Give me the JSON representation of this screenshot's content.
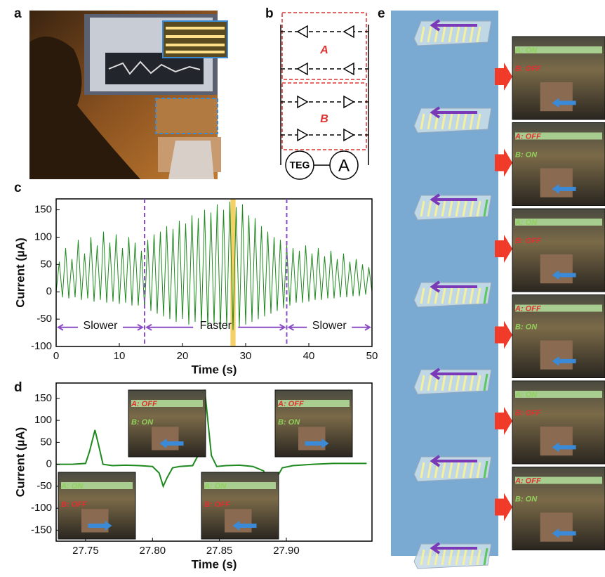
{
  "panel_labels": [
    "a",
    "b",
    "c",
    "d",
    "e"
  ],
  "circuit": {
    "group_labels": [
      "A",
      "B"
    ],
    "source": "TEG",
    "meter": "A"
  },
  "chart_data": [
    {
      "type": "line",
      "xlabel": "Time (s)",
      "ylabel": "Current (µA)",
      "color": "#1f8a1f",
      "xlim": [
        0,
        50
      ],
      "xticks": [
        0,
        10,
        20,
        30,
        40,
        50
      ],
      "ylim": [
        -100,
        170
      ],
      "yticks": [
        -100,
        -50,
        0,
        50,
        100,
        150
      ],
      "vlines": [
        14,
        36.5
      ],
      "highlight": [
        27.6,
        28.4
      ],
      "region_labels": [
        "Slower",
        "Faster",
        "Slower"
      ],
      "x": [
        0,
        0.5,
        1,
        1.5,
        2,
        2.5,
        3,
        3.5,
        4,
        4.5,
        5,
        5.5,
        6,
        6.5,
        7,
        7.5,
        8,
        8.5,
        9,
        9.5,
        10,
        10.5,
        11,
        11.5,
        12,
        12.5,
        13,
        13.5,
        14,
        14.5,
        15,
        15.5,
        16,
        16.5,
        17,
        17.5,
        18,
        18.5,
        19,
        19.5,
        20,
        20.5,
        21,
        21.5,
        22,
        22.5,
        23,
        23.5,
        24,
        24.5,
        25,
        25.5,
        26,
        26.5,
        27,
        27.5,
        28,
        28.5,
        29,
        29.5,
        30,
        30.5,
        31,
        31.5,
        32,
        32.5,
        33,
        33.5,
        34,
        34.5,
        35,
        35.5,
        36,
        36.5,
        37,
        37.5,
        38,
        38.5,
        39,
        39.5,
        40,
        40.5,
        41,
        41.5,
        42,
        42.5,
        43,
        43.5,
        44,
        44.5,
        45,
        45.5,
        46,
        46.5,
        47,
        47.5,
        48,
        48.5,
        49,
        49.5,
        50
      ],
      "values": [
        0,
        55,
        -10,
        80,
        -12,
        60,
        -10,
        95,
        -15,
        70,
        -12,
        100,
        -18,
        85,
        -15,
        110,
        -20,
        90,
        -18,
        105,
        -22,
        80,
        -20,
        100,
        -25,
        90,
        -25,
        75,
        -30,
        95,
        -35,
        105,
        -40,
        110,
        -45,
        120,
        -50,
        115,
        -55,
        130,
        -50,
        125,
        -60,
        140,
        -55,
        135,
        -60,
        150,
        -65,
        145,
        -60,
        160,
        -70,
        150,
        -65,
        165,
        -70,
        155,
        -65,
        160,
        -60,
        140,
        -55,
        135,
        -50,
        120,
        -45,
        110,
        -40,
        100,
        -35,
        95,
        -30,
        85,
        -25,
        80,
        -20,
        75,
        -20,
        85,
        -18,
        70,
        -15,
        80,
        -15,
        65,
        -12,
        75,
        -12,
        60,
        -10,
        70,
        -10,
        55,
        -8,
        60,
        -8,
        50,
        -5,
        45,
        0
      ]
    },
    {
      "type": "line",
      "xlabel": "Time (s)",
      "ylabel": "Current (µA)",
      "color": "#1f8a1f",
      "xlim": [
        27.728,
        27.964
      ],
      "xticks": [
        27.75,
        {
          "value": 27.8,
          "label": "27.80"
        },
        27.85,
        {
          "value": 27.9,
          "label": "27.90"
        }
      ],
      "ylim": [
        -175,
        185
      ],
      "yticks": [
        -150,
        -100,
        -50,
        0,
        50,
        100,
        150
      ],
      "x": [
        27.728,
        27.74,
        27.75,
        27.753,
        27.757,
        27.76,
        27.763,
        27.77,
        27.78,
        27.79,
        27.8,
        27.805,
        27.808,
        27.811,
        27.815,
        27.82,
        27.83,
        27.834,
        27.837,
        27.839,
        27.841,
        27.844,
        27.848,
        27.855,
        27.865,
        27.875,
        27.883,
        27.887,
        27.889,
        27.892,
        27.897,
        27.905,
        27.92,
        27.935,
        27.96
      ],
      "values": [
        0,
        0,
        2,
        30,
        78,
        40,
        0,
        -3,
        -2,
        -3,
        -5,
        -20,
        -50,
        -30,
        -8,
        -5,
        -3,
        20,
        110,
        170,
        110,
        20,
        -5,
        -3,
        -2,
        -5,
        -15,
        -40,
        -65,
        -35,
        -8,
        -3,
        0,
        2,
        2
      ]
    }
  ],
  "insets_d": [
    [
      {
        "text": "A: OFF",
        "color": "#e03030"
      },
      {
        "text": "B: ON",
        "color": "#8fd05a"
      }
    ],
    [
      {
        "text": "A: OFF",
        "color": "#e03030"
      },
      {
        "text": "B: ON",
        "color": "#8fd05a"
      }
    ],
    [
      {
        "text": "A: ON",
        "color": "#8fd05a"
      },
      {
        "text": "B: OFF",
        "color": "#e03030"
      }
    ],
    [
      {
        "text": "A: ON",
        "color": "#8fd05a"
      },
      {
        "text": "B: OFF",
        "color": "#e03030"
      }
    ]
  ],
  "photos_e": [
    [
      {
        "text": "A: ON",
        "color": "#8fd05a"
      },
      {
        "text": "B: OFF",
        "color": "#e03030"
      }
    ],
    [
      {
        "text": "A: OFF",
        "color": "#e03030"
      },
      {
        "text": "B: ON",
        "color": "#8fd05a"
      }
    ],
    [
      {
        "text": "A: ON",
        "color": "#8fd05a"
      },
      {
        "text": "B: OFF",
        "color": "#e03030"
      }
    ],
    [
      {
        "text": "A: OFF",
        "color": "#e03030"
      },
      {
        "text": "B: ON",
        "color": "#8fd05a"
      }
    ],
    [
      {
        "text": "A: ON",
        "color": "#8fd05a"
      },
      {
        "text": "B: OFF",
        "color": "#e03030"
      }
    ],
    [
      {
        "text": "A: OFF",
        "color": "#e03030"
      },
      {
        "text": "B: ON",
        "color": "#8fd05a"
      }
    ]
  ]
}
